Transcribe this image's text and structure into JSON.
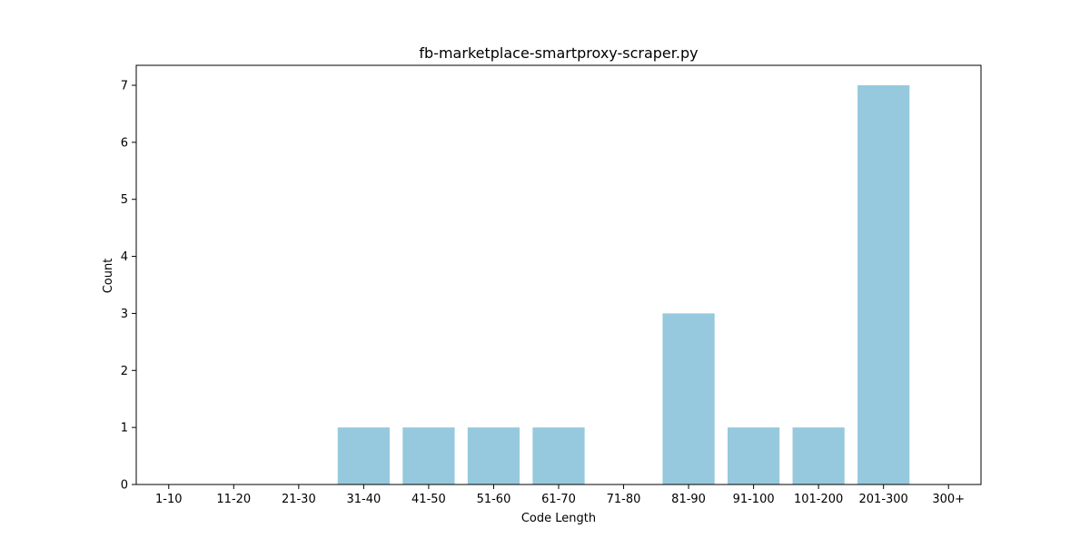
{
  "chart_data": {
    "type": "bar",
    "title": "fb-marketplace-smartproxy-scraper.py",
    "xlabel": "Code Length",
    "ylabel": "Count",
    "categories": [
      "1-10",
      "11-20",
      "21-30",
      "31-40",
      "41-50",
      "51-60",
      "61-70",
      "71-80",
      "81-90",
      "91-100",
      "101-200",
      "201-300",
      "300+"
    ],
    "values": [
      0,
      0,
      0,
      1,
      1,
      1,
      1,
      0,
      3,
      1,
      1,
      7,
      0
    ],
    "ylim": [
      0,
      7.35
    ],
    "yticks": [
      0,
      1,
      2,
      3,
      4,
      5,
      6,
      7
    ],
    "bar_color": "#96c9dd",
    "grid": false,
    "legend": "none"
  }
}
